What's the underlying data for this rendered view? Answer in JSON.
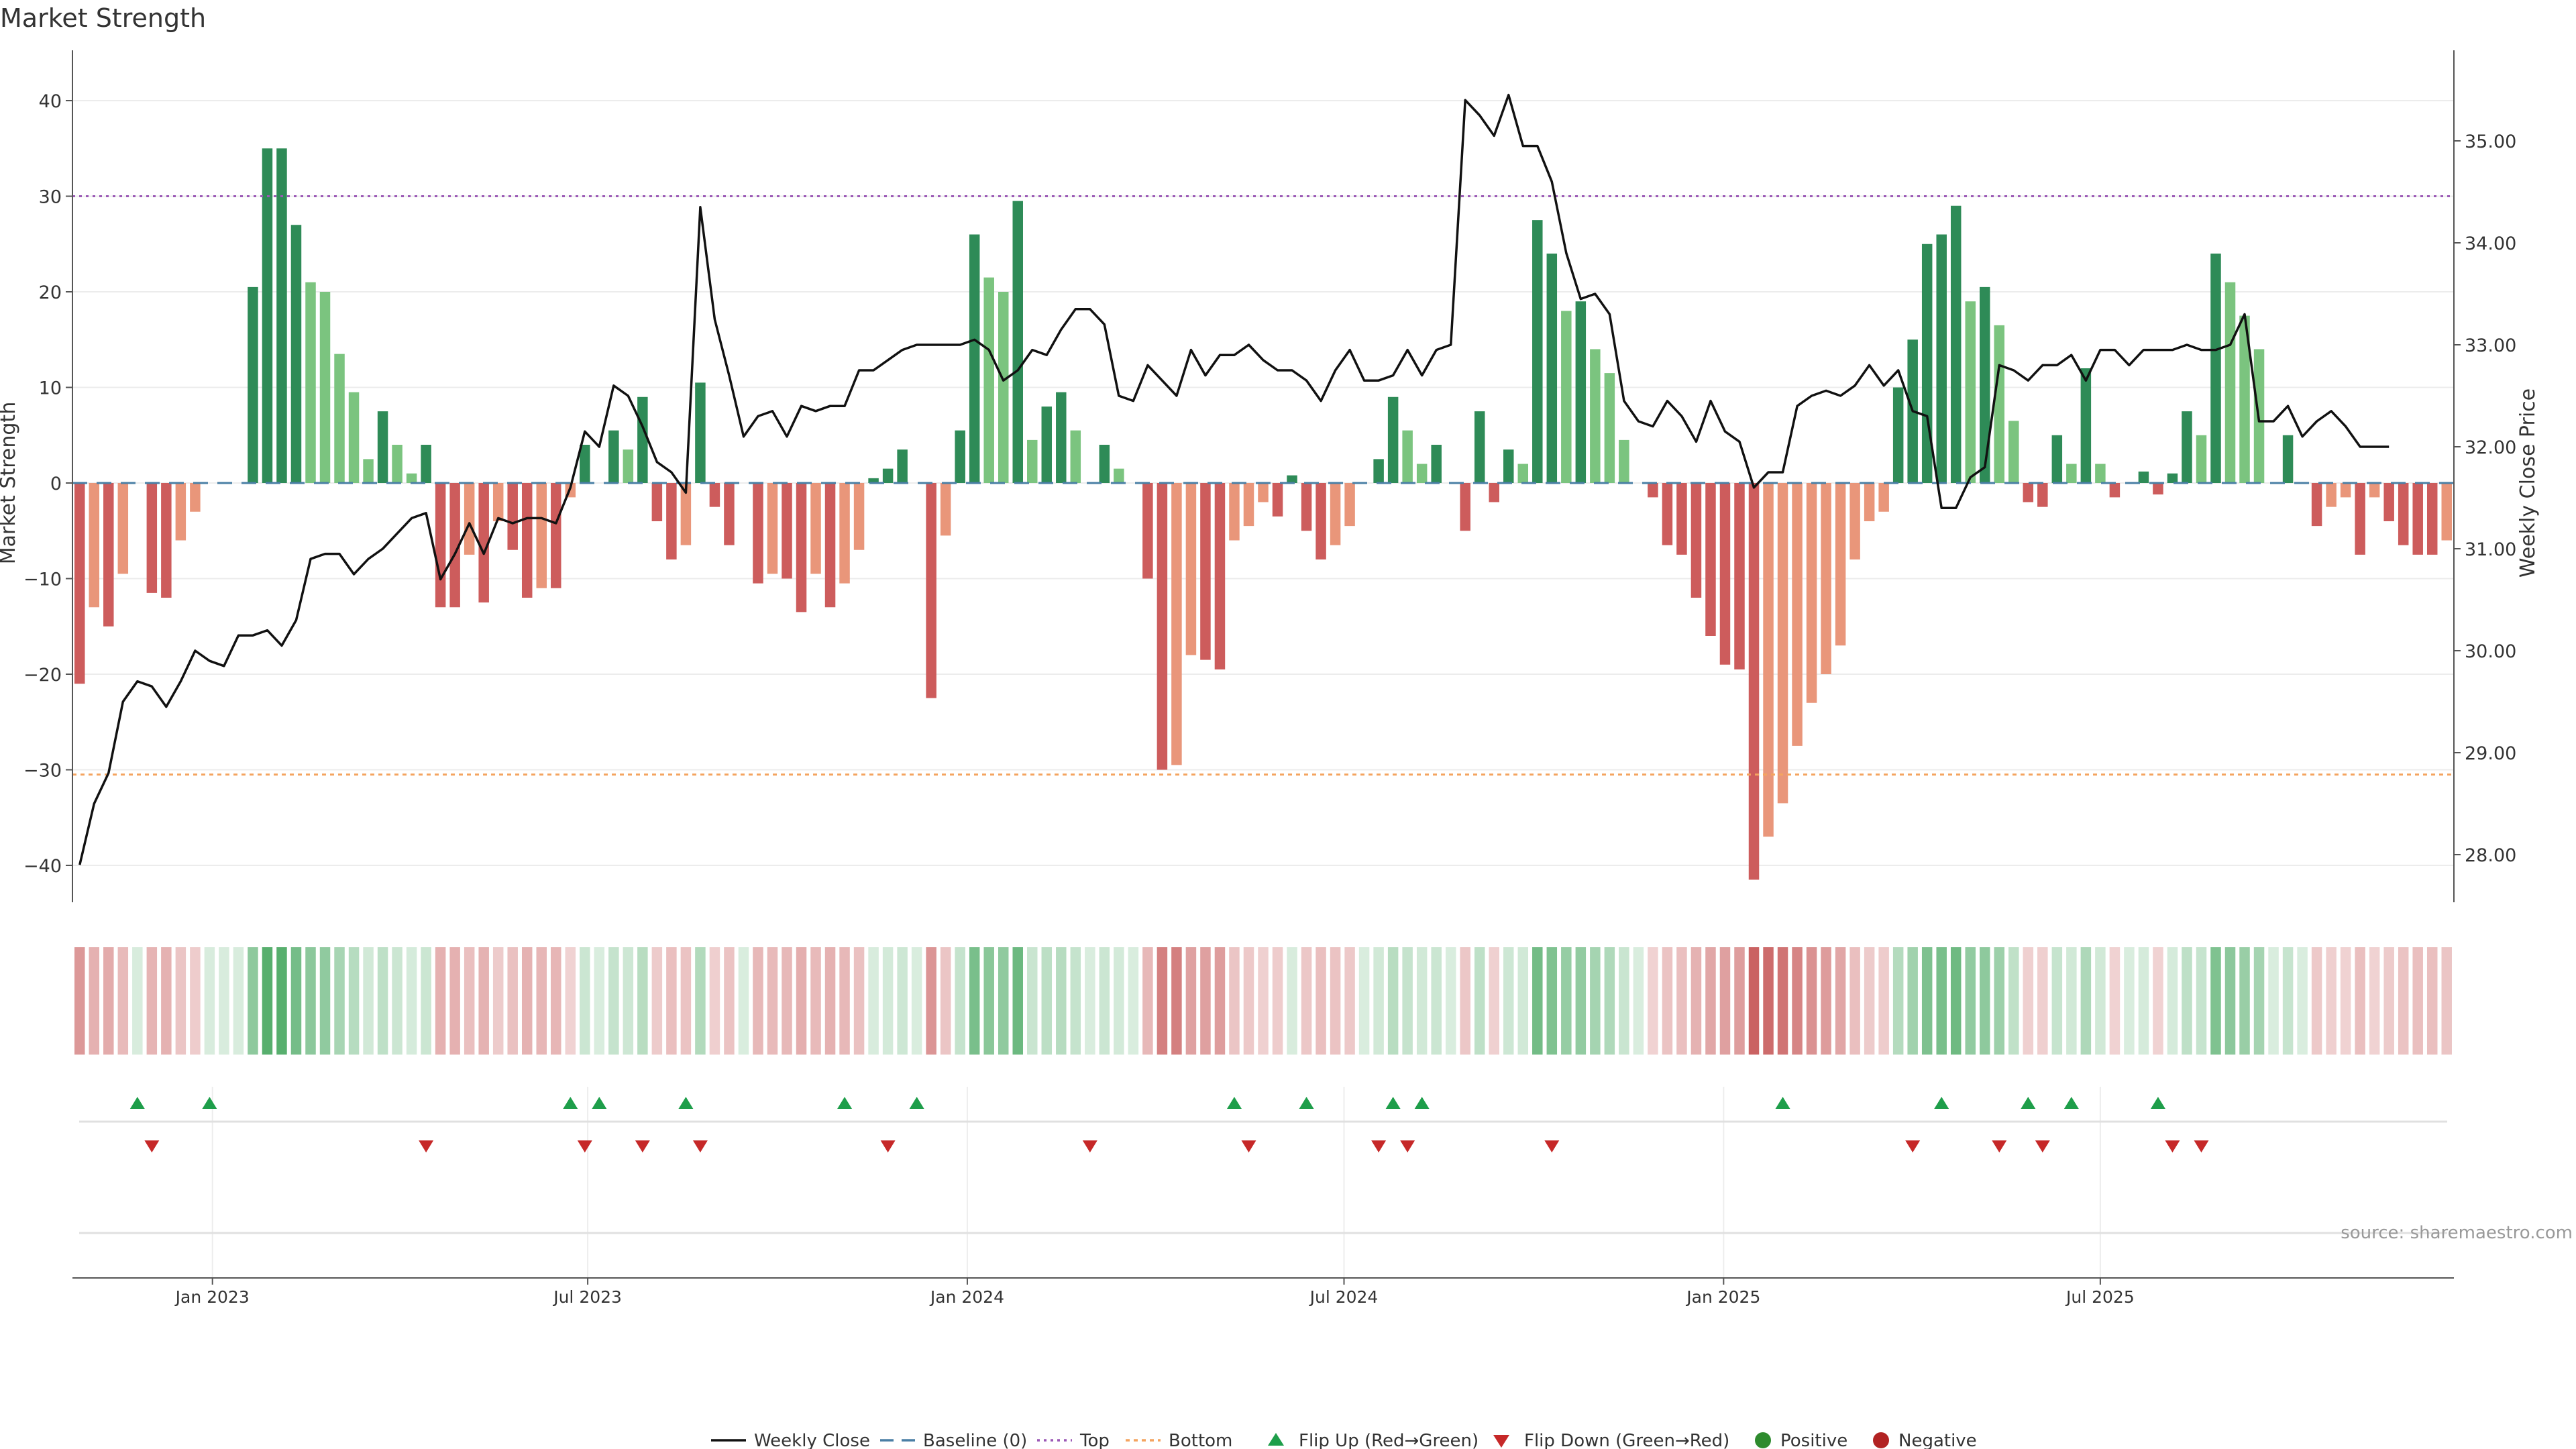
{
  "chart_data": {
    "type": "bar",
    "title": "Market Strength",
    "ylabel": "Market Strength",
    "y2label": "Weekly Close Price",
    "ylim": [
      -45,
      45
    ],
    "y2lim": [
      27.2,
      35.6
    ],
    "source": "source: sharemaestro.com",
    "yticks": [
      40,
      30,
      20,
      10,
      0,
      -10,
      -20,
      -30,
      -40
    ],
    "ytick_labels": [
      "40",
      "30",
      "20",
      "10",
      "0",
      "−10",
      "−20",
      "−30",
      "−40"
    ],
    "y2ticks": [
      35,
      34,
      33,
      32,
      31,
      30,
      29,
      28
    ],
    "y2tick_labels": [
      "35.00",
      "34.00",
      "33.00",
      "32.00",
      "31.00",
      "30.00",
      "29.00",
      "28.00"
    ],
    "xticks": [
      {
        "label": "Jan 2023",
        "index": 9.2
      },
      {
        "label": "Jul 2023",
        "index": 35.2
      },
      {
        "label": "Jan 2024",
        "index": 61.5
      },
      {
        "label": "Jul 2024",
        "index": 87.6
      },
      {
        "label": "Jan 2025",
        "index": 113.9
      },
      {
        "label": "Jul 2025",
        "index": 140.0
      }
    ],
    "top_line": 30,
    "bottom_line": -30.5,
    "strength": [
      -21,
      -13,
      -15,
      -9.5,
      0.3,
      -11.5,
      -12,
      -6,
      -3,
      0.3,
      0.3,
      0.3,
      20.5,
      35,
      35,
      27,
      21,
      20,
      13.5,
      9.5,
      2.5,
      7.5,
      4,
      1,
      4,
      -13,
      -13,
      -7.5,
      -12.5,
      -4,
      -7,
      -12,
      -11,
      -11,
      -1.5,
      4,
      0,
      5.5,
      3.5,
      9,
      -4,
      -8,
      -6.5,
      10.5,
      -2.5,
      -6.5,
      0,
      -10.5,
      -9.5,
      -10,
      -13.5,
      -9.5,
      -13,
      -10.5,
      -7,
      0.5,
      1.5,
      3.5,
      0,
      -22.5,
      -5.5,
      5.5,
      26,
      21.5,
      20,
      29.5,
      4.5,
      8,
      9.5,
      5.5,
      0,
      4,
      1.5,
      0,
      -10,
      -30,
      -29.5,
      -18,
      -18.5,
      -19.5,
      -6,
      -4.5,
      -2,
      -3.5,
      0.8,
      -5,
      -8,
      -6.5,
      -4.5,
      0,
      2.5,
      9,
      5.5,
      2,
      4,
      0,
      -5,
      7.5,
      -2,
      3.5,
      2,
      27.5,
      24,
      18,
      19,
      14,
      11.5,
      4.5,
      0,
      -1.5,
      -6.5,
      -7.5,
      -12,
      -16,
      -19,
      -19.5,
      -41.5,
      -37,
      -33.5,
      -27.5,
      -23,
      -20,
      -17,
      -8,
      -4,
      -3,
      10,
      15,
      25,
      26,
      29,
      19,
      20.5,
      16.5,
      6.5,
      -2,
      -2.5,
      5,
      2,
      12,
      2,
      -1.5,
      0,
      1.2,
      -1.2,
      1,
      7.5,
      5,
      24,
      21,
      17.5,
      14,
      0,
      5,
      0,
      -4.5,
      -2.5,
      -1.5,
      -7.5,
      -1.5,
      -4,
      -6.5,
      -7.5,
      -7.5,
      -6
    ],
    "weekly_close": [
      27.9,
      28.5,
      28.8,
      29.5,
      29.7,
      29.65,
      29.45,
      29.7,
      30.0,
      29.9,
      29.85,
      30.15,
      30.15,
      30.2,
      30.05,
      30.3,
      30.9,
      30.95,
      30.95,
      30.75,
      30.9,
      31.0,
      31.15,
      31.3,
      31.35,
      30.7,
      30.95,
      31.25,
      30.95,
      31.3,
      31.25,
      31.3,
      31.3,
      31.25,
      31.6,
      32.15,
      32.0,
      32.6,
      32.5,
      32.2,
      31.85,
      31.75,
      31.55,
      34.35,
      33.25,
      32.7,
      32.1,
      32.3,
      32.35,
      32.1,
      32.4,
      32.35,
      32.4,
      32.4,
      32.75,
      32.75,
      32.85,
      32.95,
      33.0,
      33.0,
      33.0,
      33.0,
      33.05,
      32.95,
      32.65,
      32.75,
      32.95,
      32.9,
      33.15,
      33.35,
      33.35,
      33.2,
      32.5,
      32.45,
      32.8,
      32.65,
      32.5,
      32.95,
      32.7,
      32.9,
      32.9,
      33.0,
      32.85,
      32.75,
      32.75,
      32.65,
      32.45,
      32.75,
      32.95,
      32.65,
      32.65,
      32.7,
      32.95,
      32.7,
      32.95,
      33.0,
      35.4,
      35.25,
      35.05,
      35.45,
      34.95,
      34.95,
      34.6,
      33.9,
      33.45,
      33.5,
      33.3,
      32.45,
      32.25,
      32.2,
      32.45,
      32.3,
      32.05,
      32.45,
      32.15,
      32.05,
      31.6,
      31.75,
      31.75,
      32.4,
      32.5,
      32.55,
      32.5,
      32.6,
      32.8,
      32.6,
      32.75,
      32.35,
      32.3,
      31.4,
      31.4,
      31.7,
      31.8,
      32.8,
      32.75,
      32.65,
      32.8,
      32.8,
      32.9,
      32.65,
      32.95,
      32.95,
      32.8,
      32.95,
      32.95,
      32.95,
      33.0,
      32.95,
      32.95,
      33.0,
      33.3,
      32.25,
      32.25,
      32.4,
      32.1,
      32.25,
      32.35,
      32.2,
      32.0,
      32.0,
      32.0
    ],
    "flip_up_indices": [
      4,
      9,
      34,
      36,
      42,
      53,
      58,
      80,
      85,
      91,
      93,
      118,
      129,
      135,
      138,
      144
    ],
    "flip_down_indices": [
      5,
      24,
      35,
      39,
      43,
      56,
      70,
      81,
      90,
      92,
      102,
      127,
      133,
      136,
      145,
      147
    ],
    "legend": [
      "Weekly Close",
      "Baseline (0)",
      "Top",
      "Bottom",
      "Flip Up (Red→Green)",
      "Flip Down (Green→Red)",
      "Positive",
      "Negative"
    ],
    "colors": {
      "pos_strong": "#2e8b57",
      "pos_light": "#7bc47f",
      "neg_strong": "#cd5c5c",
      "neg_light": "#e9967a",
      "line": "#111111",
      "baseline": "#4a7fa5",
      "top": "#9b59b6",
      "bottom": "#f4a460",
      "flip_up": "#1e9e4a",
      "flip_down": "#c62828",
      "positive": "#2e8b2e",
      "negative": "#b22222"
    }
  }
}
